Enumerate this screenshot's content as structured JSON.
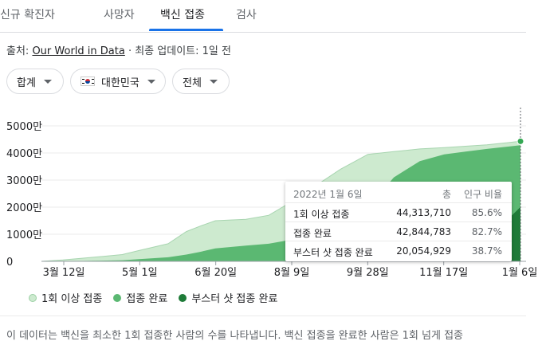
{
  "tabs": [
    {
      "label": "신규 확진자",
      "active": false
    },
    {
      "label": "사망자",
      "active": false
    },
    {
      "label": "백신 접종",
      "active": true
    },
    {
      "label": "검사",
      "active": false
    }
  ],
  "source": {
    "prefix": "출처:",
    "link": "Our World in Data",
    "suffix": "· 최종 업데이트: 1일 전"
  },
  "filters": {
    "metric": "합계",
    "region": "대한민국",
    "range": "전체"
  },
  "legend": [
    {
      "label": "1회 이상 접종",
      "color": "#cdeacf"
    },
    {
      "label": "접종 완료",
      "color": "#5bb872"
    },
    {
      "label": "부스터 샷 접종 완료",
      "color": "#1e7b38"
    }
  ],
  "tooltip": {
    "date": "2022년 1월 6일",
    "col_total": "총",
    "col_pct": "인구 비율",
    "rows": [
      {
        "label": "1회 이상 접종",
        "total": "44,313,710",
        "pct": "85.6%"
      },
      {
        "label": "접종 완료",
        "total": "42,844,783",
        "pct": "82.7%"
      },
      {
        "label": "부스터 샷 접종 완료",
        "total": "20,054,929",
        "pct": "38.7%"
      }
    ]
  },
  "description": "이 데이터는 백신을 최소한 1회 접종한 사람의 수를 나타냅니다. 백신 접종을 완료한 사람은 1회 넘게 접종",
  "chart_data": {
    "type": "area",
    "x_ticks": [
      "3월 12일",
      "5월 1일",
      "6월 20일",
      "8월 9일",
      "9월 28일",
      "11월 17일",
      "1월 6일"
    ],
    "y_ticks": [
      "0",
      "1000만",
      "2000만",
      "3000만",
      "4000만",
      "5000만"
    ],
    "ylim": [
      0,
      5000
    ],
    "y_unit": "만",
    "x": [
      "2021-02-26",
      "2021-03-12",
      "2021-04-01",
      "2021-04-20",
      "2021-05-01",
      "2021-05-20",
      "2021-06-01",
      "2021-06-10",
      "2021-06-20",
      "2021-07-10",
      "2021-07-25",
      "2021-08-09",
      "2021-08-25",
      "2021-09-10",
      "2021-09-28",
      "2021-10-15",
      "2021-11-01",
      "2021-11-17",
      "2021-12-01",
      "2021-12-15",
      "2022-01-06"
    ],
    "series": [
      {
        "name": "1회 이상 접종",
        "values": [
          0,
          50,
          150,
          250,
          400,
          650,
          1100,
          1300,
          1500,
          1550,
          1700,
          2200,
          2800,
          3400,
          3950,
          4050,
          4150,
          4200,
          4250,
          4300,
          4431
        ]
      },
      {
        "name": "접종 완료",
        "values": [
          0,
          0,
          20,
          40,
          80,
          150,
          250,
          350,
          480,
          580,
          650,
          800,
          1200,
          1600,
          2000,
          3100,
          3700,
          3950,
          4050,
          4150,
          4284
        ]
      },
      {
        "name": "부스터 샷 접종 완료",
        "values": [
          0,
          0,
          0,
          0,
          0,
          0,
          0,
          0,
          0,
          0,
          0,
          0,
          0,
          0,
          0,
          15,
          50,
          120,
          350,
          800,
          2005
        ]
      }
    ]
  }
}
